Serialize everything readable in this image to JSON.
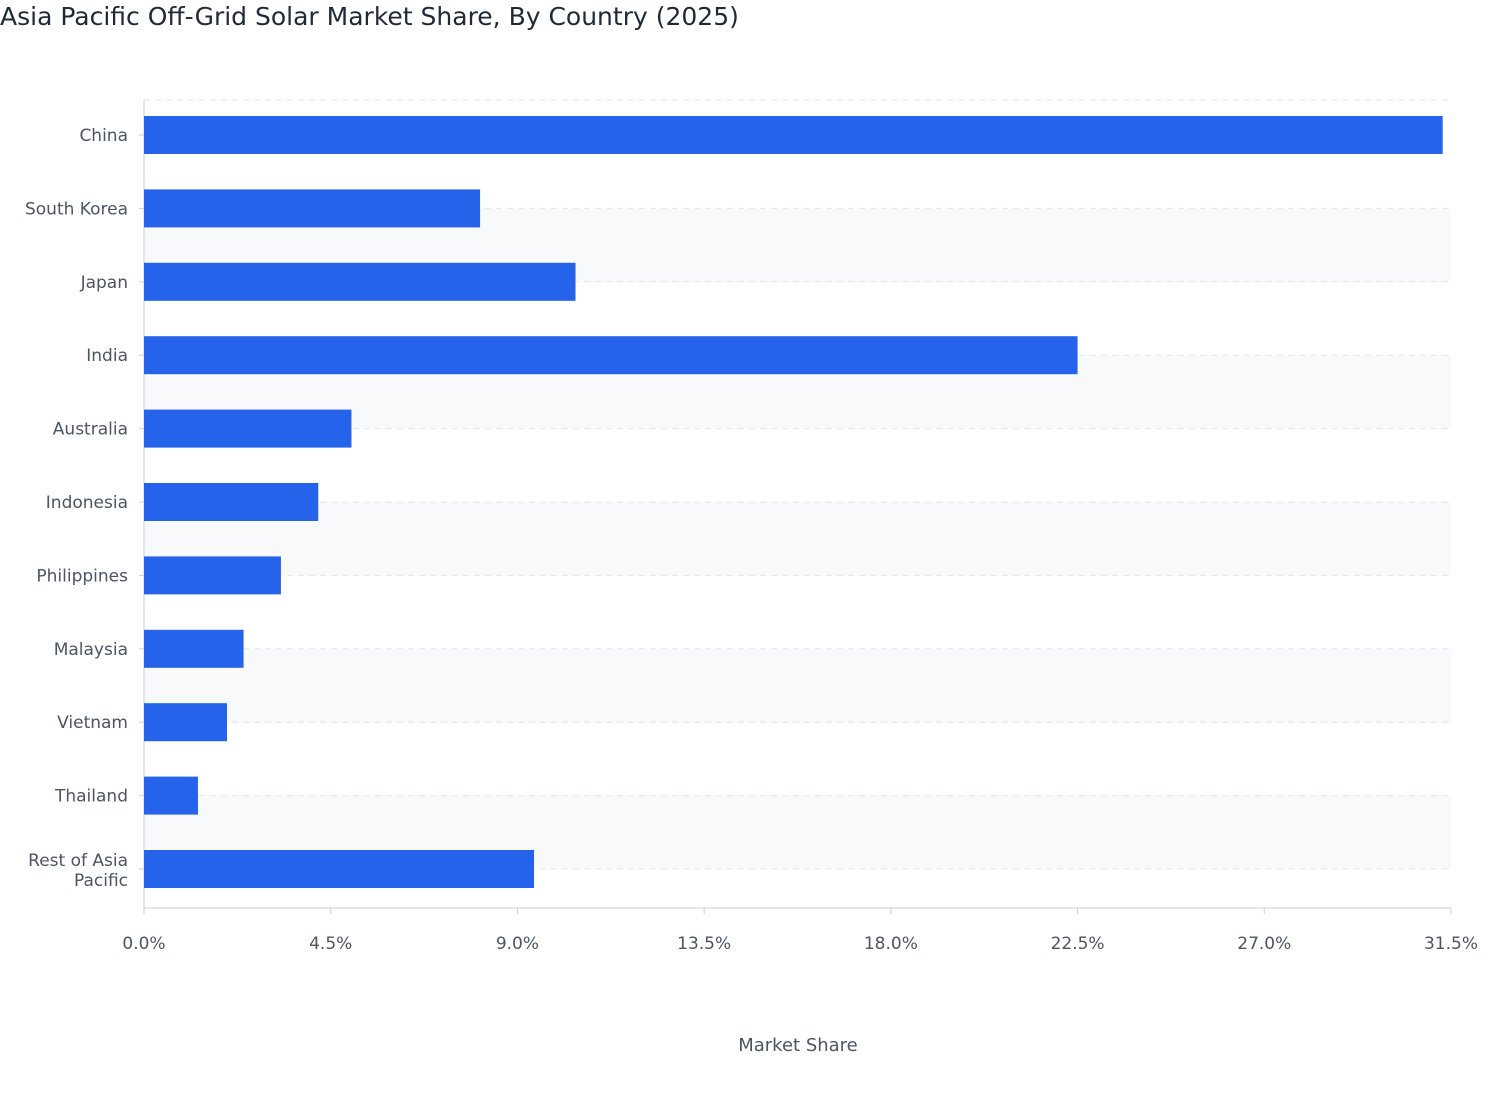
{
  "chart_data": {
    "type": "bar",
    "orientation": "horizontal",
    "title": "Asia Pacific Off-Grid Solar Market Share, By Country (2025)",
    "xlabel": "Market Share",
    "ylabel": "",
    "categories": [
      "China",
      "South Korea",
      "Japan",
      "India",
      "Australia",
      "Indonesia",
      "Philippines",
      "Malaysia",
      "Vietnam",
      "Thailand",
      "Rest of Asia Pacific"
    ],
    "values": [
      31.3,
      8.1,
      10.4,
      22.5,
      5.0,
      4.2,
      3.3,
      2.4,
      2.0,
      1.3,
      9.4
    ],
    "xlim": [
      0,
      31.5
    ],
    "xticks": [
      "0.0%",
      "4.5%",
      "9.0%",
      "13.5%",
      "18.0%",
      "22.5%",
      "27.0%",
      "31.5%"
    ],
    "grid": true,
    "bar_color": "#2563eb",
    "band_color": "#f8f9fb"
  }
}
